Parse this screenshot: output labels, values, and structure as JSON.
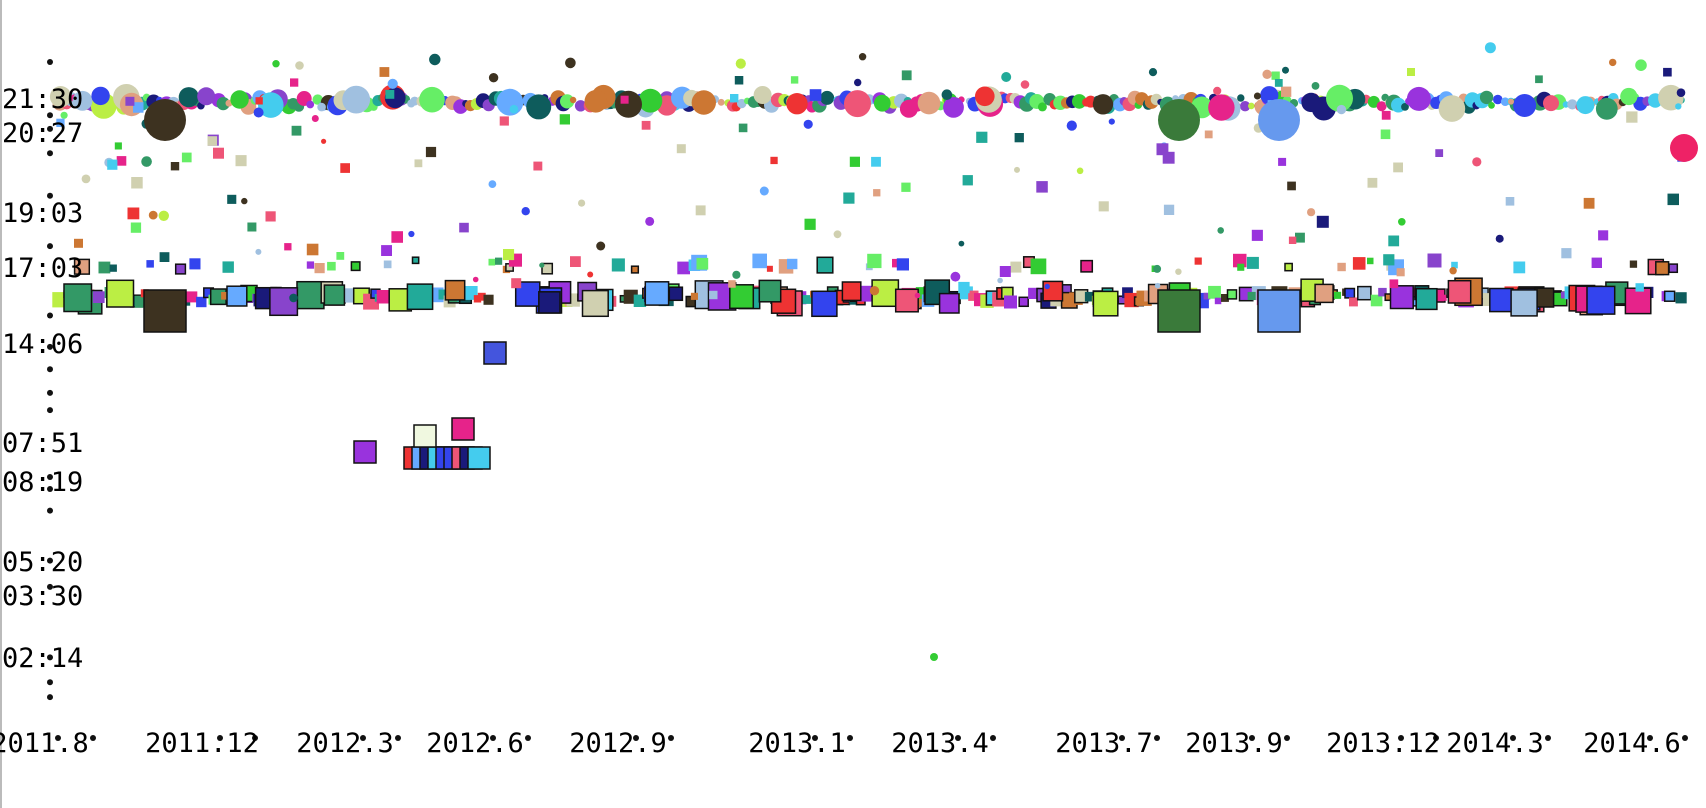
{
  "chart_data": {
    "type": "scatter",
    "title": "",
    "xlabel": "",
    "ylabel": "",
    "x_ticks": [
      "2011.8",
      "2011.12",
      "2012.3",
      "2012.6",
      "2012.9",
      "2013.1",
      "2013.4",
      "2013.7",
      "2013.9",
      "2013.12",
      "2014.3",
      "2014.6"
    ],
    "y_ticks": [
      "21:30",
      "20:27",
      "19:03",
      "17:03",
      "14:06",
      "07:51",
      "08:19",
      "05:20",
      "03:30",
      "02:14"
    ],
    "bands": [
      {
        "time": "17:03",
        "marker": "square",
        "from": "2011.8",
        "to": "2014.6"
      },
      {
        "time": "21:30",
        "marker": "circle",
        "from": "2011.8",
        "to": "2014.6"
      }
    ],
    "highlights": [
      {
        "x": "2011.8",
        "time": "21:30",
        "marker": "circle",
        "size": "large",
        "color": "#3d3220"
      },
      {
        "x": "2011.8",
        "time": "17:03",
        "marker": "square",
        "size": "large",
        "color": "#3d3220"
      },
      {
        "x": "2013.7",
        "time": "21:30",
        "marker": "circle",
        "size": "large",
        "color": "#3a7a3a"
      },
      {
        "x": "2013.7",
        "time": "17:03",
        "marker": "square",
        "size": "large",
        "color": "#3a7a3a"
      },
      {
        "x": "2013.9",
        "time": "21:30",
        "marker": "circle",
        "size": "large",
        "color": "#6699ee"
      },
      {
        "x": "2013.9",
        "time": "17:03",
        "marker": "square",
        "size": "large",
        "color": "#6699ee"
      },
      {
        "x": "2014.6",
        "time": "20:27",
        "marker": "circle",
        "size": "medium",
        "color": "#ee2266"
      },
      {
        "x": "2012.3",
        "time": "07:51",
        "marker": "square",
        "size": "medium",
        "color": "#9933dd"
      },
      {
        "x": "2012.6",
        "time": "14:06",
        "marker": "square",
        "size": "medium",
        "color": "#4455dd"
      }
    ],
    "palette": [
      "#3d3220",
      "#e6238a",
      "#33cc33",
      "#3344ee",
      "#9933dd",
      "#22aa99",
      "#66ee66",
      "#cc7733",
      "#a0c0e0",
      "#1a1a7a",
      "#bbee44",
      "#ee5577",
      "#44ccee",
      "#e0a080",
      "#339966",
      "#8844cc",
      "#ee3333",
      "#66aaff",
      "#d0d0b0",
      "#0e5c5c"
    ],
    "grid": false,
    "legend": "none"
  }
}
